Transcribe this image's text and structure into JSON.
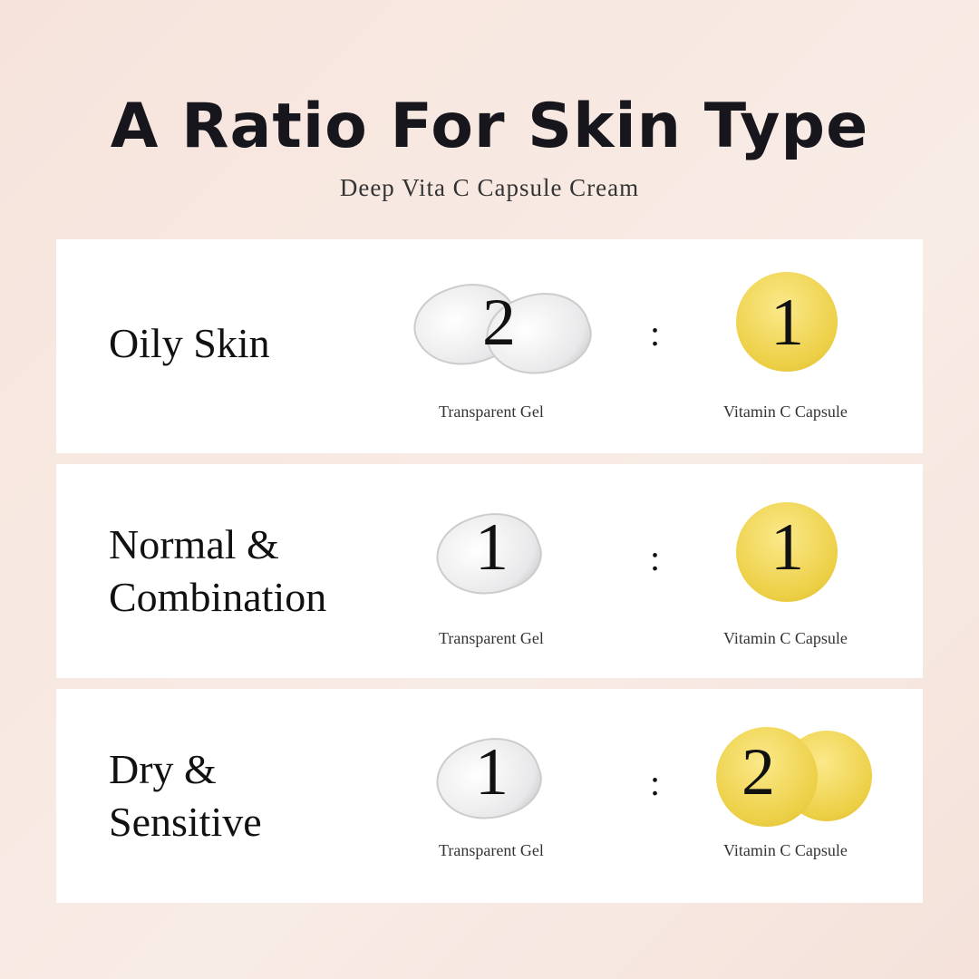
{
  "title": "A Ratio For Skin Type",
  "subtitle": "Deep Vita C Capsule Cream",
  "rows": [
    {
      "skin": "Oily Skin",
      "gel": "2",
      "capsule": "1"
    },
    {
      "skin": "Normal & Combination",
      "gel": "1",
      "capsule": "1"
    },
    {
      "skin": "Dry & Sensitive",
      "gel": "1",
      "capsule": "2"
    }
  ],
  "gel_label": "Transparent Gel",
  "capsule_label": "Vitamin C Capsule",
  "separator": ":"
}
